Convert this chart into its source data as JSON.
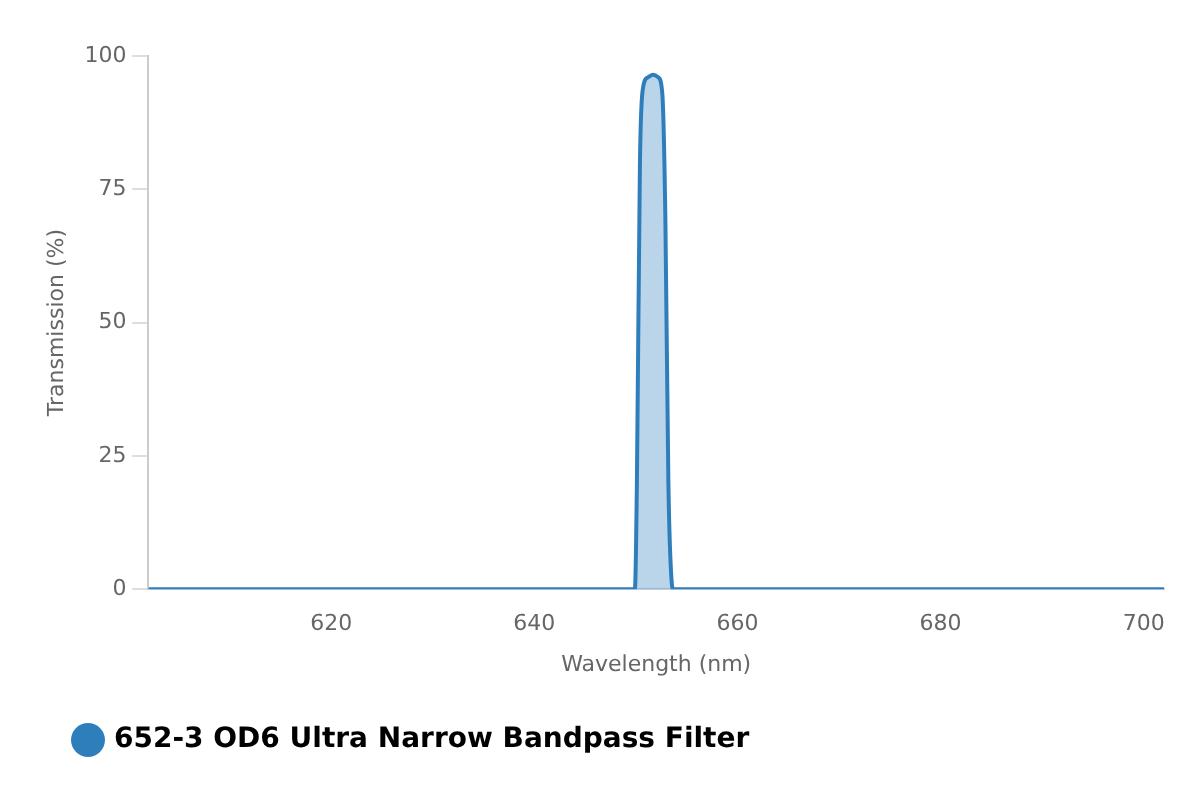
{
  "chart_data": {
    "type": "area",
    "xlabel": "Wavelength (nm)",
    "ylabel": "Transmission (%)",
    "x": [
      602,
      649.9,
      650.1,
      650.4,
      650.7,
      651.2,
      651.7,
      652.2,
      652.6,
      652.9,
      653.2,
      653.5,
      653.7,
      702
    ],
    "series": [
      {
        "name": "652-3 OD6 Ultra Narrow Bandpass Filter",
        "color": "#2f7ebc",
        "values": [
          0,
          0,
          20,
          80,
          94,
          96,
          96.5,
          96,
          93,
          70,
          20,
          2,
          0,
          0
        ]
      }
    ],
    "xlim": [
      602,
      702
    ],
    "xticks": [
      620,
      640,
      660,
      680,
      700
    ],
    "ylim": [
      0,
      100
    ],
    "yticks": [
      0,
      25,
      50,
      75,
      100
    ],
    "grid": false,
    "legend": "bottom left"
  }
}
